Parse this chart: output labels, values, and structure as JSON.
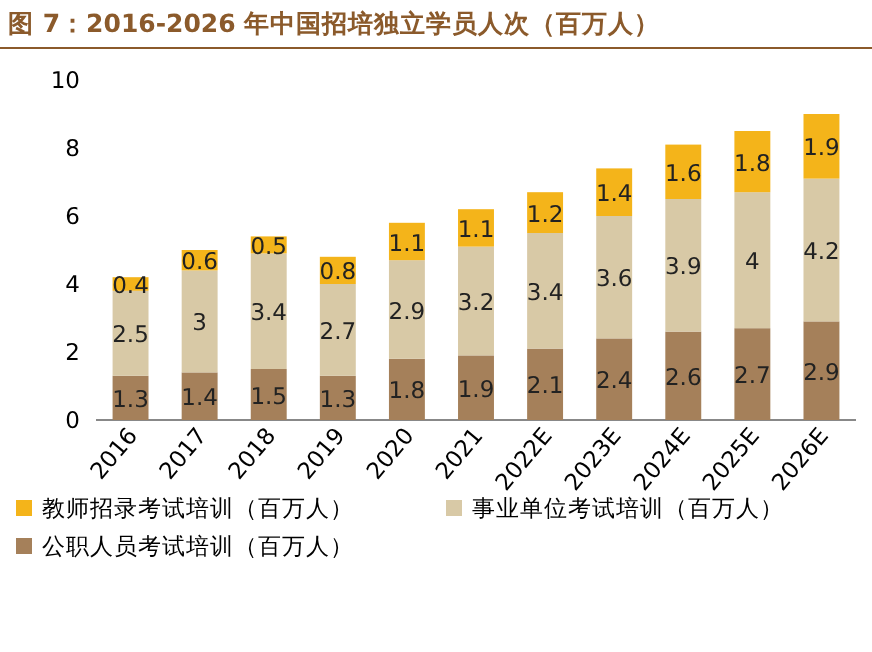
{
  "chart_data": {
    "type": "bar",
    "stacked": true,
    "title": "图 7：2016-2026 年中国招培独立学员人次（百万人）",
    "categories": [
      "2016",
      "2017",
      "2018",
      "2019",
      "2020",
      "2021",
      "2022E",
      "2023E",
      "2024E",
      "2025E",
      "2026E"
    ],
    "series": [
      {
        "name": "公职人员考试培训（百万人）",
        "color": "#a5805a",
        "values": [
          1.3,
          1.4,
          1.5,
          1.3,
          1.8,
          1.9,
          2.1,
          2.4,
          2.6,
          2.7,
          2.9
        ]
      },
      {
        "name": "事业单位考试培训（百万人）",
        "color": "#d8c9a6",
        "values": [
          2.5,
          3,
          3.4,
          2.7,
          2.9,
          3.2,
          3.4,
          3.6,
          3.9,
          4,
          4.2
        ]
      },
      {
        "name": "教师招录考试培训（百万人）",
        "color": "#f4b41a",
        "values": [
          0.4,
          0.6,
          0.5,
          0.8,
          1.1,
          1.1,
          1.2,
          1.4,
          1.6,
          1.8,
          1.9
        ]
      }
    ],
    "ylim": [
      0,
      10
    ],
    "yticks": [
      0,
      2,
      4,
      6,
      8,
      10
    ],
    "data_labels": true,
    "legend": "bottom",
    "grid": false
  }
}
